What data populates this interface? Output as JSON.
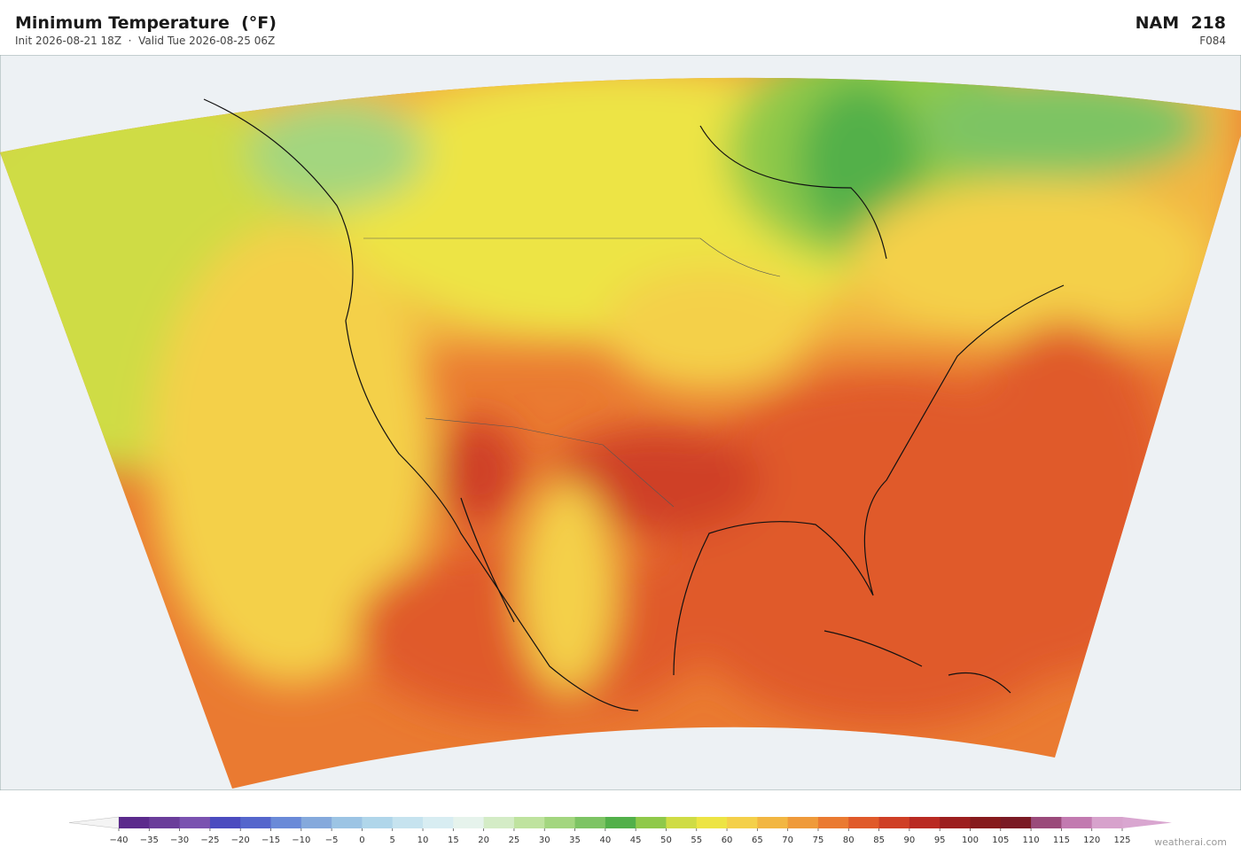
{
  "header": {
    "title": "Minimum Temperature  (°F)",
    "subtitle": "Init 2026-08-21 18Z  ·  Valid Tue 2026-08-25 06Z",
    "model": "NAM  218",
    "forecast_hour": "F084"
  },
  "colorbar": {
    "ticks": [
      {
        "value": -40,
        "label": "−40"
      },
      {
        "value": -35,
        "label": "−35"
      },
      {
        "value": -30,
        "label": "−30"
      },
      {
        "value": -25,
        "label": "−25"
      },
      {
        "value": -20,
        "label": "−20"
      },
      {
        "value": -15,
        "label": "−15"
      },
      {
        "value": -10,
        "label": "−10"
      },
      {
        "value": -5,
        "label": "−5"
      },
      0,
      5,
      10,
      15,
      20,
      25,
      30,
      35,
      40,
      45,
      50,
      55,
      60,
      65,
      70,
      75,
      80,
      85,
      90,
      95,
      100,
      105,
      110,
      115,
      120,
      125
    ],
    "colors": [
      "#5b2a8c",
      "#6a3d9a",
      "#7a52b0",
      "#4b4bbf",
      "#5566cc",
      "#6a8ad8",
      "#85a9dc",
      "#9cc4e4",
      "#b0d6ea",
      "#c6e3ef",
      "#d8edf2",
      "#e6f3ec",
      "#d4ecc6",
      "#bfe39f",
      "#a3d67f",
      "#7dc464",
      "#52b04a",
      "#8fc94a",
      "#cfdc45",
      "#ede444",
      "#f4d04a",
      "#f2b642",
      "#ef9a3a",
      "#ea7a31",
      "#e05a2a",
      "#cf3f25",
      "#b92a22",
      "#9c1e1e",
      "#861a1c",
      "#7a1a24",
      "#9a4a7a",
      "#c27ab0",
      "#d7a2cc"
    ],
    "under_color": "#f4f4f4",
    "over_color": "#d9a6d0"
  },
  "credit": "weatherai.com"
}
